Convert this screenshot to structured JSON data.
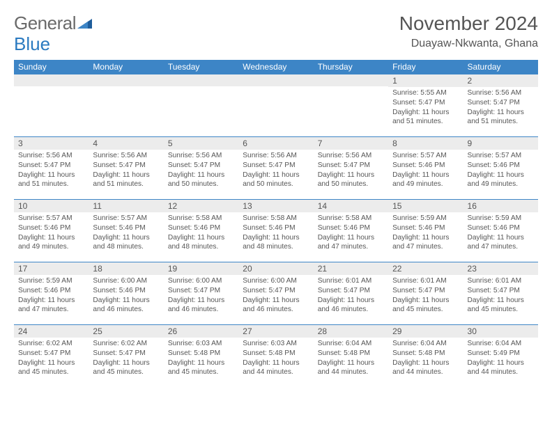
{
  "logo": {
    "text_a": "General",
    "text_b": "Blue"
  },
  "header": {
    "month_title": "November 2024",
    "location": "Duayaw-Nkwanta, Ghana"
  },
  "colors": {
    "header_bg": "#3d85c6",
    "header_text": "#ffffff",
    "daynum_bg": "#ececec",
    "text": "#565656",
    "border": "#3d85c6"
  },
  "dow": [
    "Sunday",
    "Monday",
    "Tuesday",
    "Wednesday",
    "Thursday",
    "Friday",
    "Saturday"
  ],
  "weeks": [
    [
      {
        "n": "",
        "sr": "",
        "ss": "",
        "dl": ""
      },
      {
        "n": "",
        "sr": "",
        "ss": "",
        "dl": ""
      },
      {
        "n": "",
        "sr": "",
        "ss": "",
        "dl": ""
      },
      {
        "n": "",
        "sr": "",
        "ss": "",
        "dl": ""
      },
      {
        "n": "",
        "sr": "",
        "ss": "",
        "dl": ""
      },
      {
        "n": "1",
        "sr": "Sunrise: 5:55 AM",
        "ss": "Sunset: 5:47 PM",
        "dl": "Daylight: 11 hours and 51 minutes."
      },
      {
        "n": "2",
        "sr": "Sunrise: 5:56 AM",
        "ss": "Sunset: 5:47 PM",
        "dl": "Daylight: 11 hours and 51 minutes."
      }
    ],
    [
      {
        "n": "3",
        "sr": "Sunrise: 5:56 AM",
        "ss": "Sunset: 5:47 PM",
        "dl": "Daylight: 11 hours and 51 minutes."
      },
      {
        "n": "4",
        "sr": "Sunrise: 5:56 AM",
        "ss": "Sunset: 5:47 PM",
        "dl": "Daylight: 11 hours and 51 minutes."
      },
      {
        "n": "5",
        "sr": "Sunrise: 5:56 AM",
        "ss": "Sunset: 5:47 PM",
        "dl": "Daylight: 11 hours and 50 minutes."
      },
      {
        "n": "6",
        "sr": "Sunrise: 5:56 AM",
        "ss": "Sunset: 5:47 PM",
        "dl": "Daylight: 11 hours and 50 minutes."
      },
      {
        "n": "7",
        "sr": "Sunrise: 5:56 AM",
        "ss": "Sunset: 5:47 PM",
        "dl": "Daylight: 11 hours and 50 minutes."
      },
      {
        "n": "8",
        "sr": "Sunrise: 5:57 AM",
        "ss": "Sunset: 5:46 PM",
        "dl": "Daylight: 11 hours and 49 minutes."
      },
      {
        "n": "9",
        "sr": "Sunrise: 5:57 AM",
        "ss": "Sunset: 5:46 PM",
        "dl": "Daylight: 11 hours and 49 minutes."
      }
    ],
    [
      {
        "n": "10",
        "sr": "Sunrise: 5:57 AM",
        "ss": "Sunset: 5:46 PM",
        "dl": "Daylight: 11 hours and 49 minutes."
      },
      {
        "n": "11",
        "sr": "Sunrise: 5:57 AM",
        "ss": "Sunset: 5:46 PM",
        "dl": "Daylight: 11 hours and 48 minutes."
      },
      {
        "n": "12",
        "sr": "Sunrise: 5:58 AM",
        "ss": "Sunset: 5:46 PM",
        "dl": "Daylight: 11 hours and 48 minutes."
      },
      {
        "n": "13",
        "sr": "Sunrise: 5:58 AM",
        "ss": "Sunset: 5:46 PM",
        "dl": "Daylight: 11 hours and 48 minutes."
      },
      {
        "n": "14",
        "sr": "Sunrise: 5:58 AM",
        "ss": "Sunset: 5:46 PM",
        "dl": "Daylight: 11 hours and 47 minutes."
      },
      {
        "n": "15",
        "sr": "Sunrise: 5:59 AM",
        "ss": "Sunset: 5:46 PM",
        "dl": "Daylight: 11 hours and 47 minutes."
      },
      {
        "n": "16",
        "sr": "Sunrise: 5:59 AM",
        "ss": "Sunset: 5:46 PM",
        "dl": "Daylight: 11 hours and 47 minutes."
      }
    ],
    [
      {
        "n": "17",
        "sr": "Sunrise: 5:59 AM",
        "ss": "Sunset: 5:46 PM",
        "dl": "Daylight: 11 hours and 47 minutes."
      },
      {
        "n": "18",
        "sr": "Sunrise: 6:00 AM",
        "ss": "Sunset: 5:46 PM",
        "dl": "Daylight: 11 hours and 46 minutes."
      },
      {
        "n": "19",
        "sr": "Sunrise: 6:00 AM",
        "ss": "Sunset: 5:47 PM",
        "dl": "Daylight: 11 hours and 46 minutes."
      },
      {
        "n": "20",
        "sr": "Sunrise: 6:00 AM",
        "ss": "Sunset: 5:47 PM",
        "dl": "Daylight: 11 hours and 46 minutes."
      },
      {
        "n": "21",
        "sr": "Sunrise: 6:01 AM",
        "ss": "Sunset: 5:47 PM",
        "dl": "Daylight: 11 hours and 46 minutes."
      },
      {
        "n": "22",
        "sr": "Sunrise: 6:01 AM",
        "ss": "Sunset: 5:47 PM",
        "dl": "Daylight: 11 hours and 45 minutes."
      },
      {
        "n": "23",
        "sr": "Sunrise: 6:01 AM",
        "ss": "Sunset: 5:47 PM",
        "dl": "Daylight: 11 hours and 45 minutes."
      }
    ],
    [
      {
        "n": "24",
        "sr": "Sunrise: 6:02 AM",
        "ss": "Sunset: 5:47 PM",
        "dl": "Daylight: 11 hours and 45 minutes."
      },
      {
        "n": "25",
        "sr": "Sunrise: 6:02 AM",
        "ss": "Sunset: 5:47 PM",
        "dl": "Daylight: 11 hours and 45 minutes."
      },
      {
        "n": "26",
        "sr": "Sunrise: 6:03 AM",
        "ss": "Sunset: 5:48 PM",
        "dl": "Daylight: 11 hours and 45 minutes."
      },
      {
        "n": "27",
        "sr": "Sunrise: 6:03 AM",
        "ss": "Sunset: 5:48 PM",
        "dl": "Daylight: 11 hours and 44 minutes."
      },
      {
        "n": "28",
        "sr": "Sunrise: 6:04 AM",
        "ss": "Sunset: 5:48 PM",
        "dl": "Daylight: 11 hours and 44 minutes."
      },
      {
        "n": "29",
        "sr": "Sunrise: 6:04 AM",
        "ss": "Sunset: 5:48 PM",
        "dl": "Daylight: 11 hours and 44 minutes."
      },
      {
        "n": "30",
        "sr": "Sunrise: 6:04 AM",
        "ss": "Sunset: 5:49 PM",
        "dl": "Daylight: 11 hours and 44 minutes."
      }
    ]
  ]
}
